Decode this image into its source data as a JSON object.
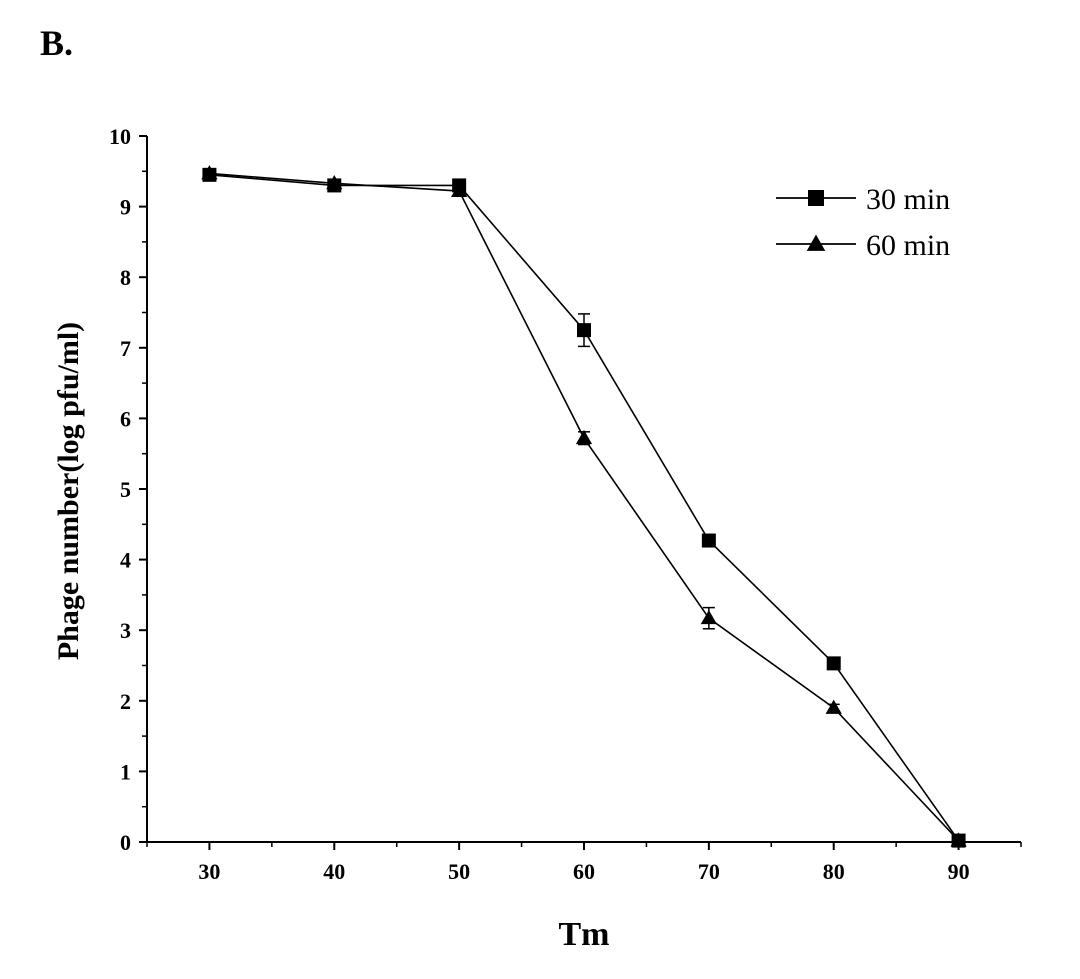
{
  "panel_label": "B.",
  "chart_data": {
    "type": "line",
    "title": "",
    "xlabel": "Tm",
    "ylabel": "Phage number(log pfu/ml)",
    "xlim": [
      25,
      95
    ],
    "ylim": [
      0,
      10
    ],
    "xticks": [
      30,
      40,
      50,
      60,
      70,
      80,
      90
    ],
    "yticks": [
      0,
      1,
      2,
      3,
      4,
      5,
      6,
      7,
      8,
      9,
      10
    ],
    "legend_position": "top-right",
    "series": [
      {
        "name": "30 min",
        "marker": "square",
        "x": [
          30,
          40,
          50,
          60,
          70,
          80,
          90
        ],
        "y": [
          9.45,
          9.3,
          9.3,
          7.25,
          4.27,
          2.53,
          0.02
        ],
        "error": [
          0.05,
          0.04,
          0.05,
          0.23,
          0.08,
          0.07,
          0.02
        ]
      },
      {
        "name": "60 min",
        "marker": "triangle",
        "x": [
          30,
          40,
          50,
          60,
          70,
          80,
          90
        ],
        "y": [
          9.47,
          9.33,
          9.22,
          5.72,
          3.17,
          1.9,
          0.02
        ],
        "error": [
          0.06,
          0.05,
          0.05,
          0.09,
          0.15,
          0.05,
          0.02
        ]
      }
    ]
  }
}
